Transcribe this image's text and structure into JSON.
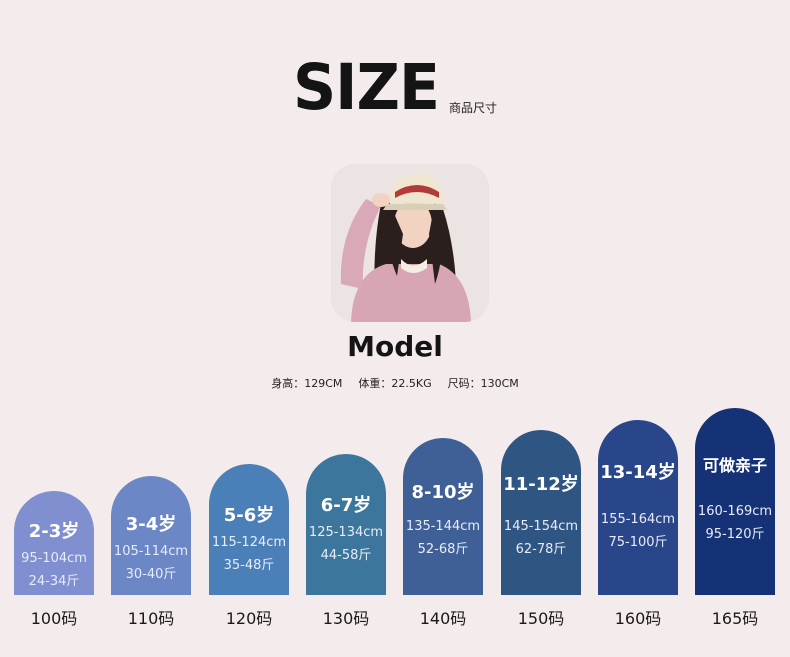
{
  "header": {
    "title": "SIZE",
    "subtitle": "商品尺寸"
  },
  "model": {
    "title": "Model",
    "height": "身高：129CM",
    "weight": "体重：22.5KG",
    "size": "尺码：130CM"
  },
  "bars": [
    {
      "age": "2-3岁",
      "cm": "95-104cm",
      "jin": "24-34斤",
      "size": "100码",
      "color": "#7f8fcf"
    },
    {
      "age": "3-4岁",
      "cm": "105-114cm",
      "jin": "30-40斤",
      "size": "110码",
      "color": "#6b87c6"
    },
    {
      "age": "5-6岁",
      "cm": "115-124cm",
      "jin": "35-48斤",
      "size": "120码",
      "color": "#4a7fb8"
    },
    {
      "age": "6-7岁",
      "cm": "125-134cm",
      "jin": "44-58斤",
      "size": "130码",
      "color": "#3c769d"
    },
    {
      "age": "8-10岁",
      "cm": "135-144cm",
      "jin": "52-68斤",
      "size": "140码",
      "color": "#3f6096"
    },
    {
      "age": "11-12岁",
      "cm": "145-154cm",
      "jin": "62-78斤",
      "size": "150码",
      "color": "#2f5583"
    },
    {
      "age": "13-14岁",
      "cm": "155-164cm",
      "jin": "75-100斤",
      "size": "160码",
      "color": "#2a468a"
    },
    {
      "age": "可做亲子",
      "cm": "160-169cm",
      "jin": "95-120斤",
      "size": "165码",
      "color": "#163276"
    }
  ]
}
